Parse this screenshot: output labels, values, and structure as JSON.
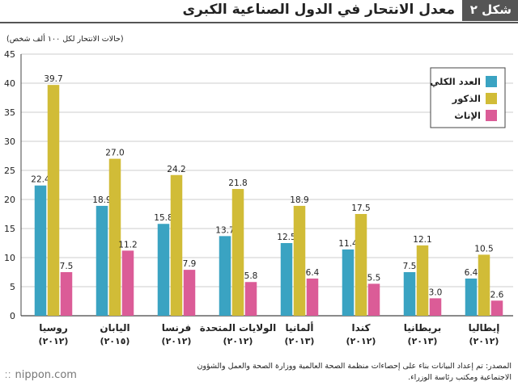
{
  "header": {
    "figure_label": "شكل ٢",
    "title": "معدل الانتحار في الدول الصناعية الكبرى"
  },
  "source": {
    "line1": "المصدر: تم إعداد البيانات بناء على إحصاءات منظمة الصحة العالمية ووزارة الصحة والعمل والشؤون",
    "line2": "الاجتماعية ومكتب رئاسة الوزراء."
  },
  "brand": {
    "name": "nippon.com"
  },
  "colors": {
    "total": "#3AA3C2",
    "male": "#D1BC37",
    "female": "#DB5C97",
    "axis": "#444444",
    "grid": "#BDBDBD"
  },
  "chart_data": {
    "type": "bar",
    "ylabel": "(حالات الانتحار لكل ١٠٠ ألف شخص)",
    "ylim": [
      0,
      45
    ],
    "yticks": [
      0,
      5,
      10,
      15,
      20,
      25,
      30,
      35,
      40,
      45
    ],
    "grid": true,
    "legend_position": "top-right",
    "categories": [
      {
        "name": "روسيا",
        "year": "(٢٠١٢)"
      },
      {
        "name": "اليابان",
        "year": "(٢٠١٥)"
      },
      {
        "name": "فرنسا",
        "year": "(٢٠١٢)"
      },
      {
        "name": "الولايات المتحدة",
        "year": "(٢٠١٢)"
      },
      {
        "name": "ألمانيا",
        "year": "(٢٠١٣)"
      },
      {
        "name": "كندا",
        "year": "(٢٠١٢)"
      },
      {
        "name": "بريطانيا",
        "year": "(٢٠١٣)"
      },
      {
        "name": "إيطاليا",
        "year": "(٢٠١٢)"
      }
    ],
    "series": [
      {
        "name": "العدد الكلي",
        "color": "#3AA3C2",
        "values": [
          22.4,
          18.9,
          15.8,
          13.7,
          12.5,
          11.4,
          7.5,
          6.4
        ]
      },
      {
        "name": "الذكور",
        "color": "#D1BC37",
        "values": [
          39.7,
          27.0,
          24.2,
          21.8,
          18.9,
          17.5,
          12.1,
          10.5
        ]
      },
      {
        "name": "الإناث",
        "color": "#DB5C97",
        "values": [
          7.5,
          11.2,
          7.9,
          5.8,
          6.4,
          5.5,
          3.0,
          2.6
        ]
      }
    ]
  }
}
